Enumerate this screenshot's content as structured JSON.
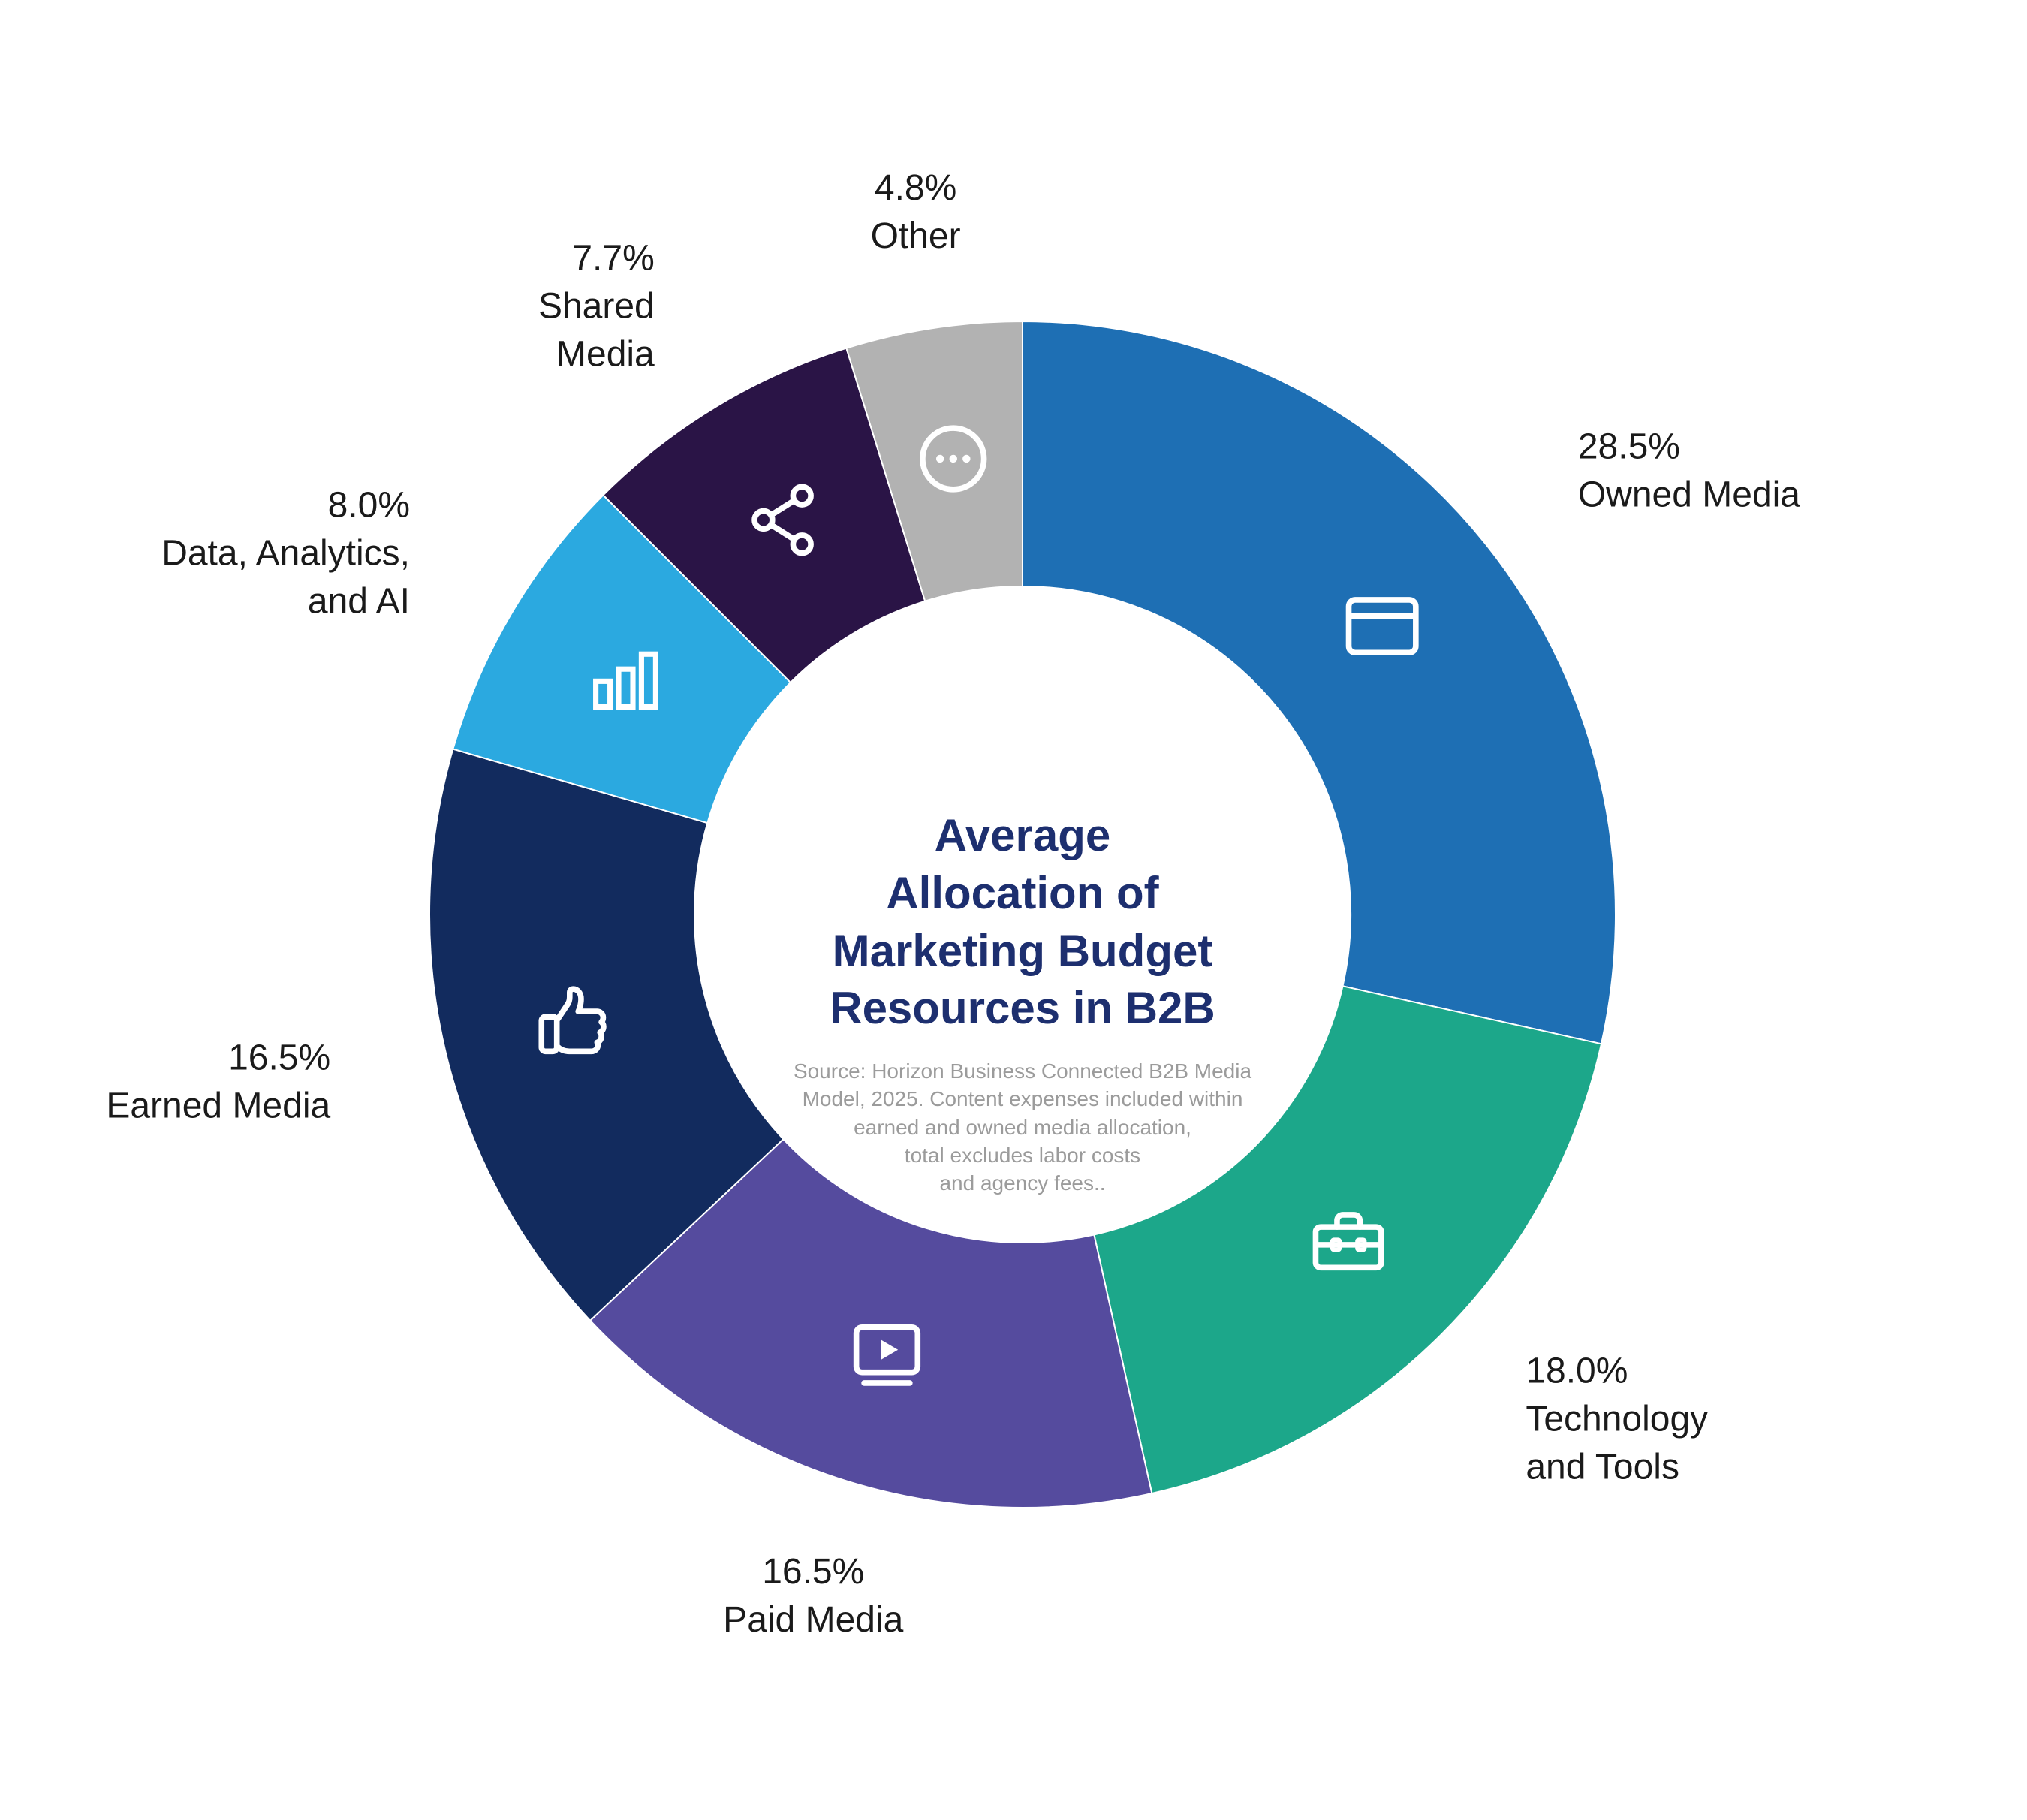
{
  "page": {
    "background": "#FFFFFF"
  },
  "chart_data": {
    "type": "pie",
    "variant": "donut",
    "title": "Average\nAllocation of\nMarketing Budget\nResources in B2B",
    "source_note": "Source: Horizon Business Connected B2B Media\nModel, 2025. Content expenses included within\nearned and owned media allocation,\ntotal excludes labor costs\nand agency fees..",
    "start_angle_deg": 0,
    "direction": "clockwise",
    "total_pct": 100.0,
    "slices": [
      {
        "id": "owned-media",
        "label": "Owned Media",
        "value_pct": 28.5,
        "value_label": "28.5%",
        "label_lines": [
          "28.5%",
          "Owned Media"
        ],
        "color": "#1E6FB4",
        "icon": "browser-window-icon"
      },
      {
        "id": "technology-and-tools",
        "label": "Technology and Tools",
        "value_pct": 18.0,
        "value_label": "18.0%",
        "label_lines": [
          "18.0%",
          "Technology",
          "and Tools"
        ],
        "color": "#1CA78A",
        "icon": "toolbox-icon"
      },
      {
        "id": "paid-media",
        "label": "Paid Media",
        "value_pct": 16.5,
        "value_label": "16.5%",
        "label_lines": [
          "16.5%",
          "Paid Media"
        ],
        "color": "#554B9E",
        "icon": "video-player-icon"
      },
      {
        "id": "earned-media",
        "label": "Earned Media",
        "value_pct": 16.5,
        "value_label": "16.5%",
        "label_lines": [
          "16.5%",
          "Earned Media"
        ],
        "color": "#122B5E",
        "icon": "thumbs-up-icon"
      },
      {
        "id": "data-analytics-ai",
        "label": "Data, Analytics, and AI",
        "value_pct": 8.0,
        "value_label": "8.0%",
        "label_lines": [
          "8.0%",
          "Data, Analytics,",
          "and AI"
        ],
        "color": "#2BA9E0",
        "icon": "bar-chart-icon"
      },
      {
        "id": "shared-media",
        "label": "Shared Media",
        "value_pct": 7.7,
        "value_label": "7.7%",
        "label_lines": [
          "7.7%",
          "Shared",
          "Media"
        ],
        "color": "#2A1446",
        "icon": "share-nodes-icon"
      },
      {
        "id": "other",
        "label": "Other",
        "value_pct": 4.8,
        "value_label": "4.8%",
        "label_lines": [
          "4.8%",
          "Other"
        ],
        "color": "#B2B2B2",
        "icon": "ellipsis-circle-icon"
      }
    ],
    "colors": {
      "title": "#1D2F6F",
      "source_text": "#9B9B9B",
      "slice_label_text": "#1A1A1A",
      "icon": "#FFFFFF",
      "background": "#FFFFFF"
    },
    "legend_position": "around-donut",
    "grid": false
  }
}
